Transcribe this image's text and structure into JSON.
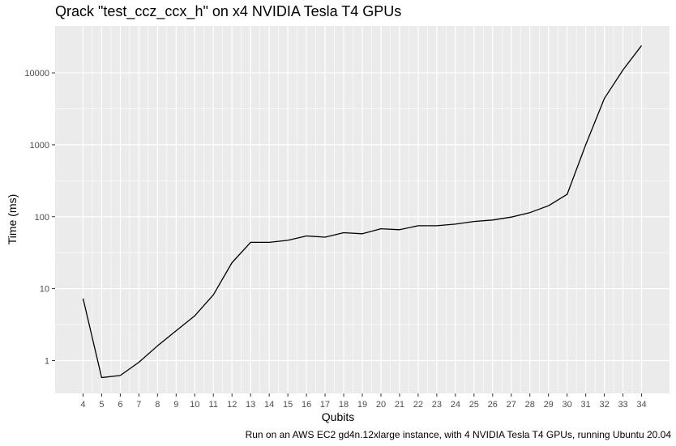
{
  "chart_data": {
    "type": "line",
    "title": "Qrack \"test_ccz_ccx_h\" on x4 NVIDIA Tesla T4 GPUs",
    "xlabel": "Qubits",
    "ylabel": "Time (ms)",
    "caption": "Run on an AWS EC2 gd4n.12xlarge instance, with 4 NVIDIA Tesla T4 GPUs, running Ubuntu 20.04",
    "yscale": "log10",
    "ylim": [
      0.35,
      45000
    ],
    "xlim": [
      2.5,
      35.5
    ],
    "grid": true,
    "panel_background": "#ebebeb",
    "grid_color": "#ffffff",
    "line_color": "#000000",
    "x_ticks": [
      4,
      5,
      6,
      7,
      8,
      9,
      10,
      11,
      12,
      13,
      14,
      15,
      16,
      17,
      18,
      19,
      20,
      21,
      22,
      23,
      24,
      25,
      26,
      27,
      28,
      29,
      30,
      31,
      32,
      33,
      34
    ],
    "y_ticks": [
      1,
      10,
      100,
      1000,
      10000
    ],
    "y_tick_labels": [
      "1",
      "10",
      "100",
      "1000",
      "10000"
    ],
    "x": [
      4,
      5,
      6,
      7,
      8,
      9,
      10,
      11,
      12,
      13,
      14,
      15,
      16,
      17,
      18,
      19,
      20,
      21,
      22,
      23,
      24,
      25,
      26,
      27,
      28,
      29,
      30,
      31,
      32,
      33,
      34
    ],
    "y": [
      7.3,
      0.58,
      0.62,
      0.95,
      1.6,
      2.6,
      4.2,
      8.2,
      23,
      44,
      44,
      47,
      54,
      52,
      60,
      58,
      68,
      66,
      75,
      75,
      79,
      86,
      90,
      99,
      114,
      142,
      205,
      1000,
      4400,
      11000,
      24000
    ]
  }
}
